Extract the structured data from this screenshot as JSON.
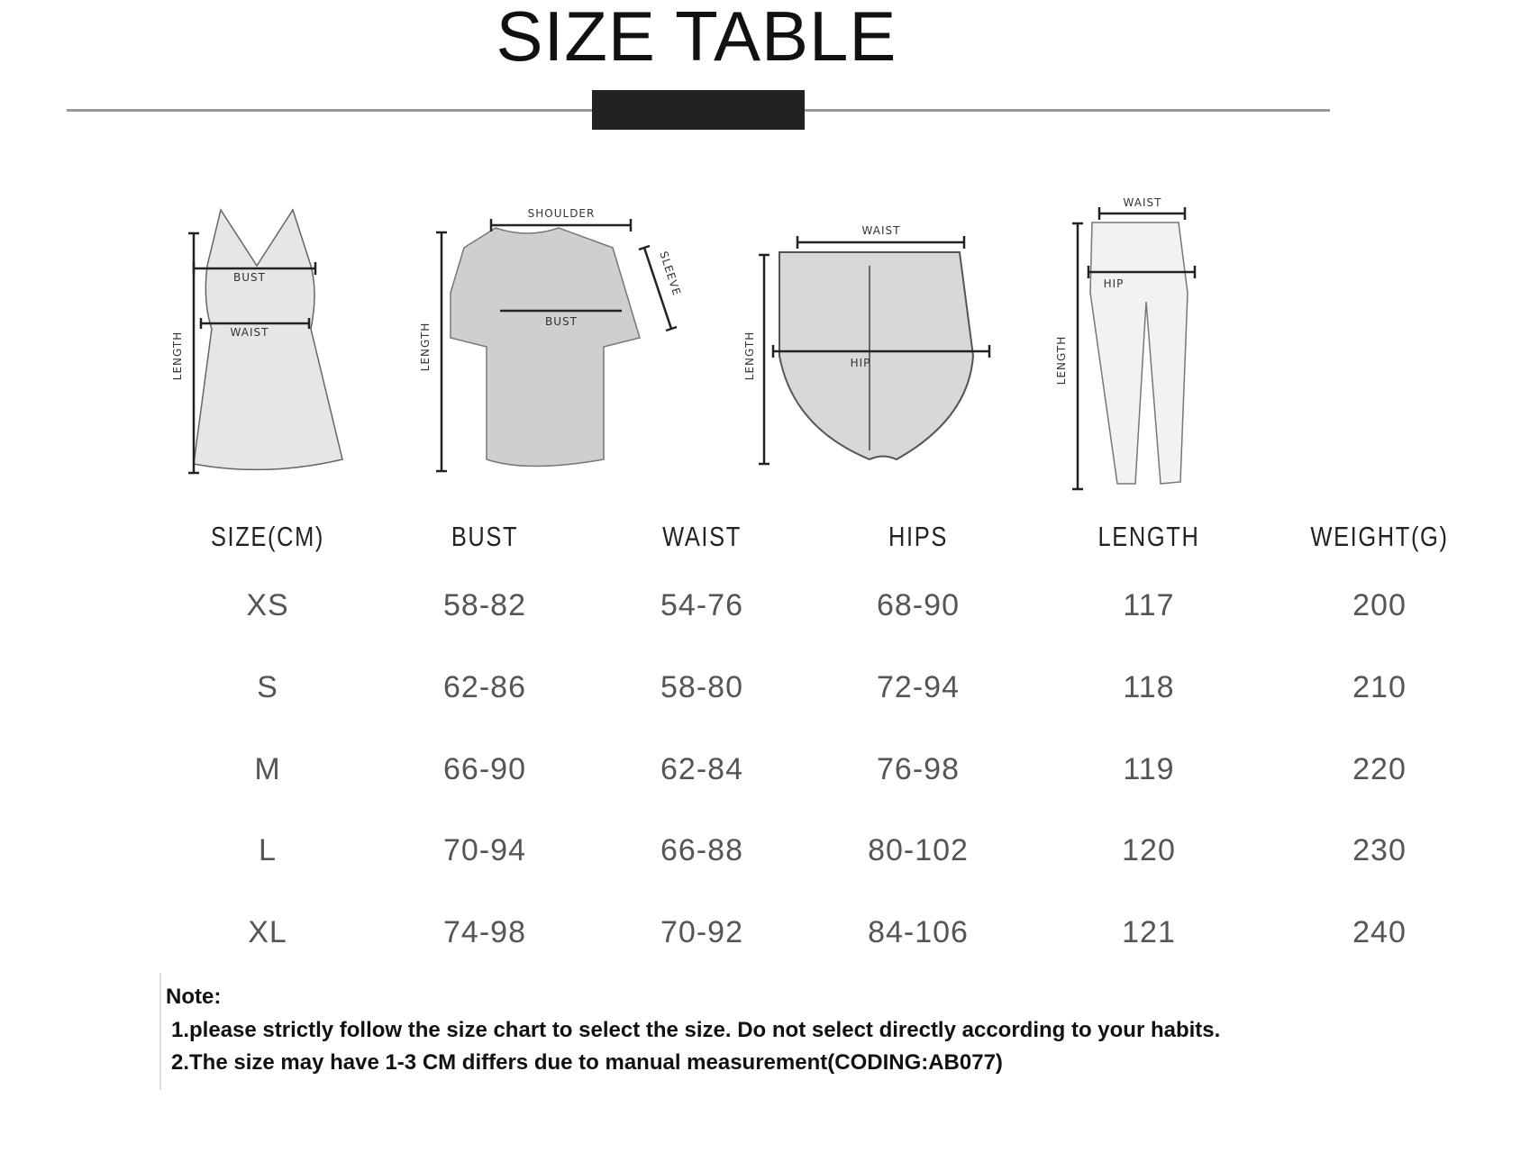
{
  "title": "SIZE TABLE",
  "diagrams": {
    "dress": {
      "labels": [
        "BUST",
        "WAIST",
        "LENGTH"
      ]
    },
    "tshirt": {
      "labels": [
        "SHOULDER",
        "SLEEVE",
        "BUST",
        "LENGTH"
      ]
    },
    "shorts": {
      "labels": [
        "WAIST",
        "HIP",
        "LENGTH"
      ]
    },
    "pants": {
      "labels": [
        "WAIST",
        "HIP",
        "LENGTH"
      ]
    }
  },
  "table": {
    "headers": [
      "SIZE(CM)",
      "BUST",
      "WAIST",
      "HIPS",
      "LENGTH",
      "WEIGHT(G)"
    ],
    "rows": [
      [
        "XS",
        "58-82",
        "54-76",
        "68-90",
        "117",
        "200"
      ],
      [
        "S",
        "62-86",
        "58-80",
        "72-94",
        "118",
        "210"
      ],
      [
        "M",
        "66-90",
        "62-84",
        "76-98",
        "119",
        "220"
      ],
      [
        "L",
        "70-94",
        "66-88",
        "80-102",
        "120",
        "230"
      ],
      [
        "XL",
        "74-98",
        "70-92",
        "84-106",
        "121",
        "240"
      ]
    ]
  },
  "notes": {
    "heading": "Note:",
    "lines": [
      "1.please strictly follow the size chart to select the size.  Do not select directly according to your habits.",
      "2.The size may have 1-3 CM differs due to manual measurement(CODING:AB077)"
    ]
  }
}
